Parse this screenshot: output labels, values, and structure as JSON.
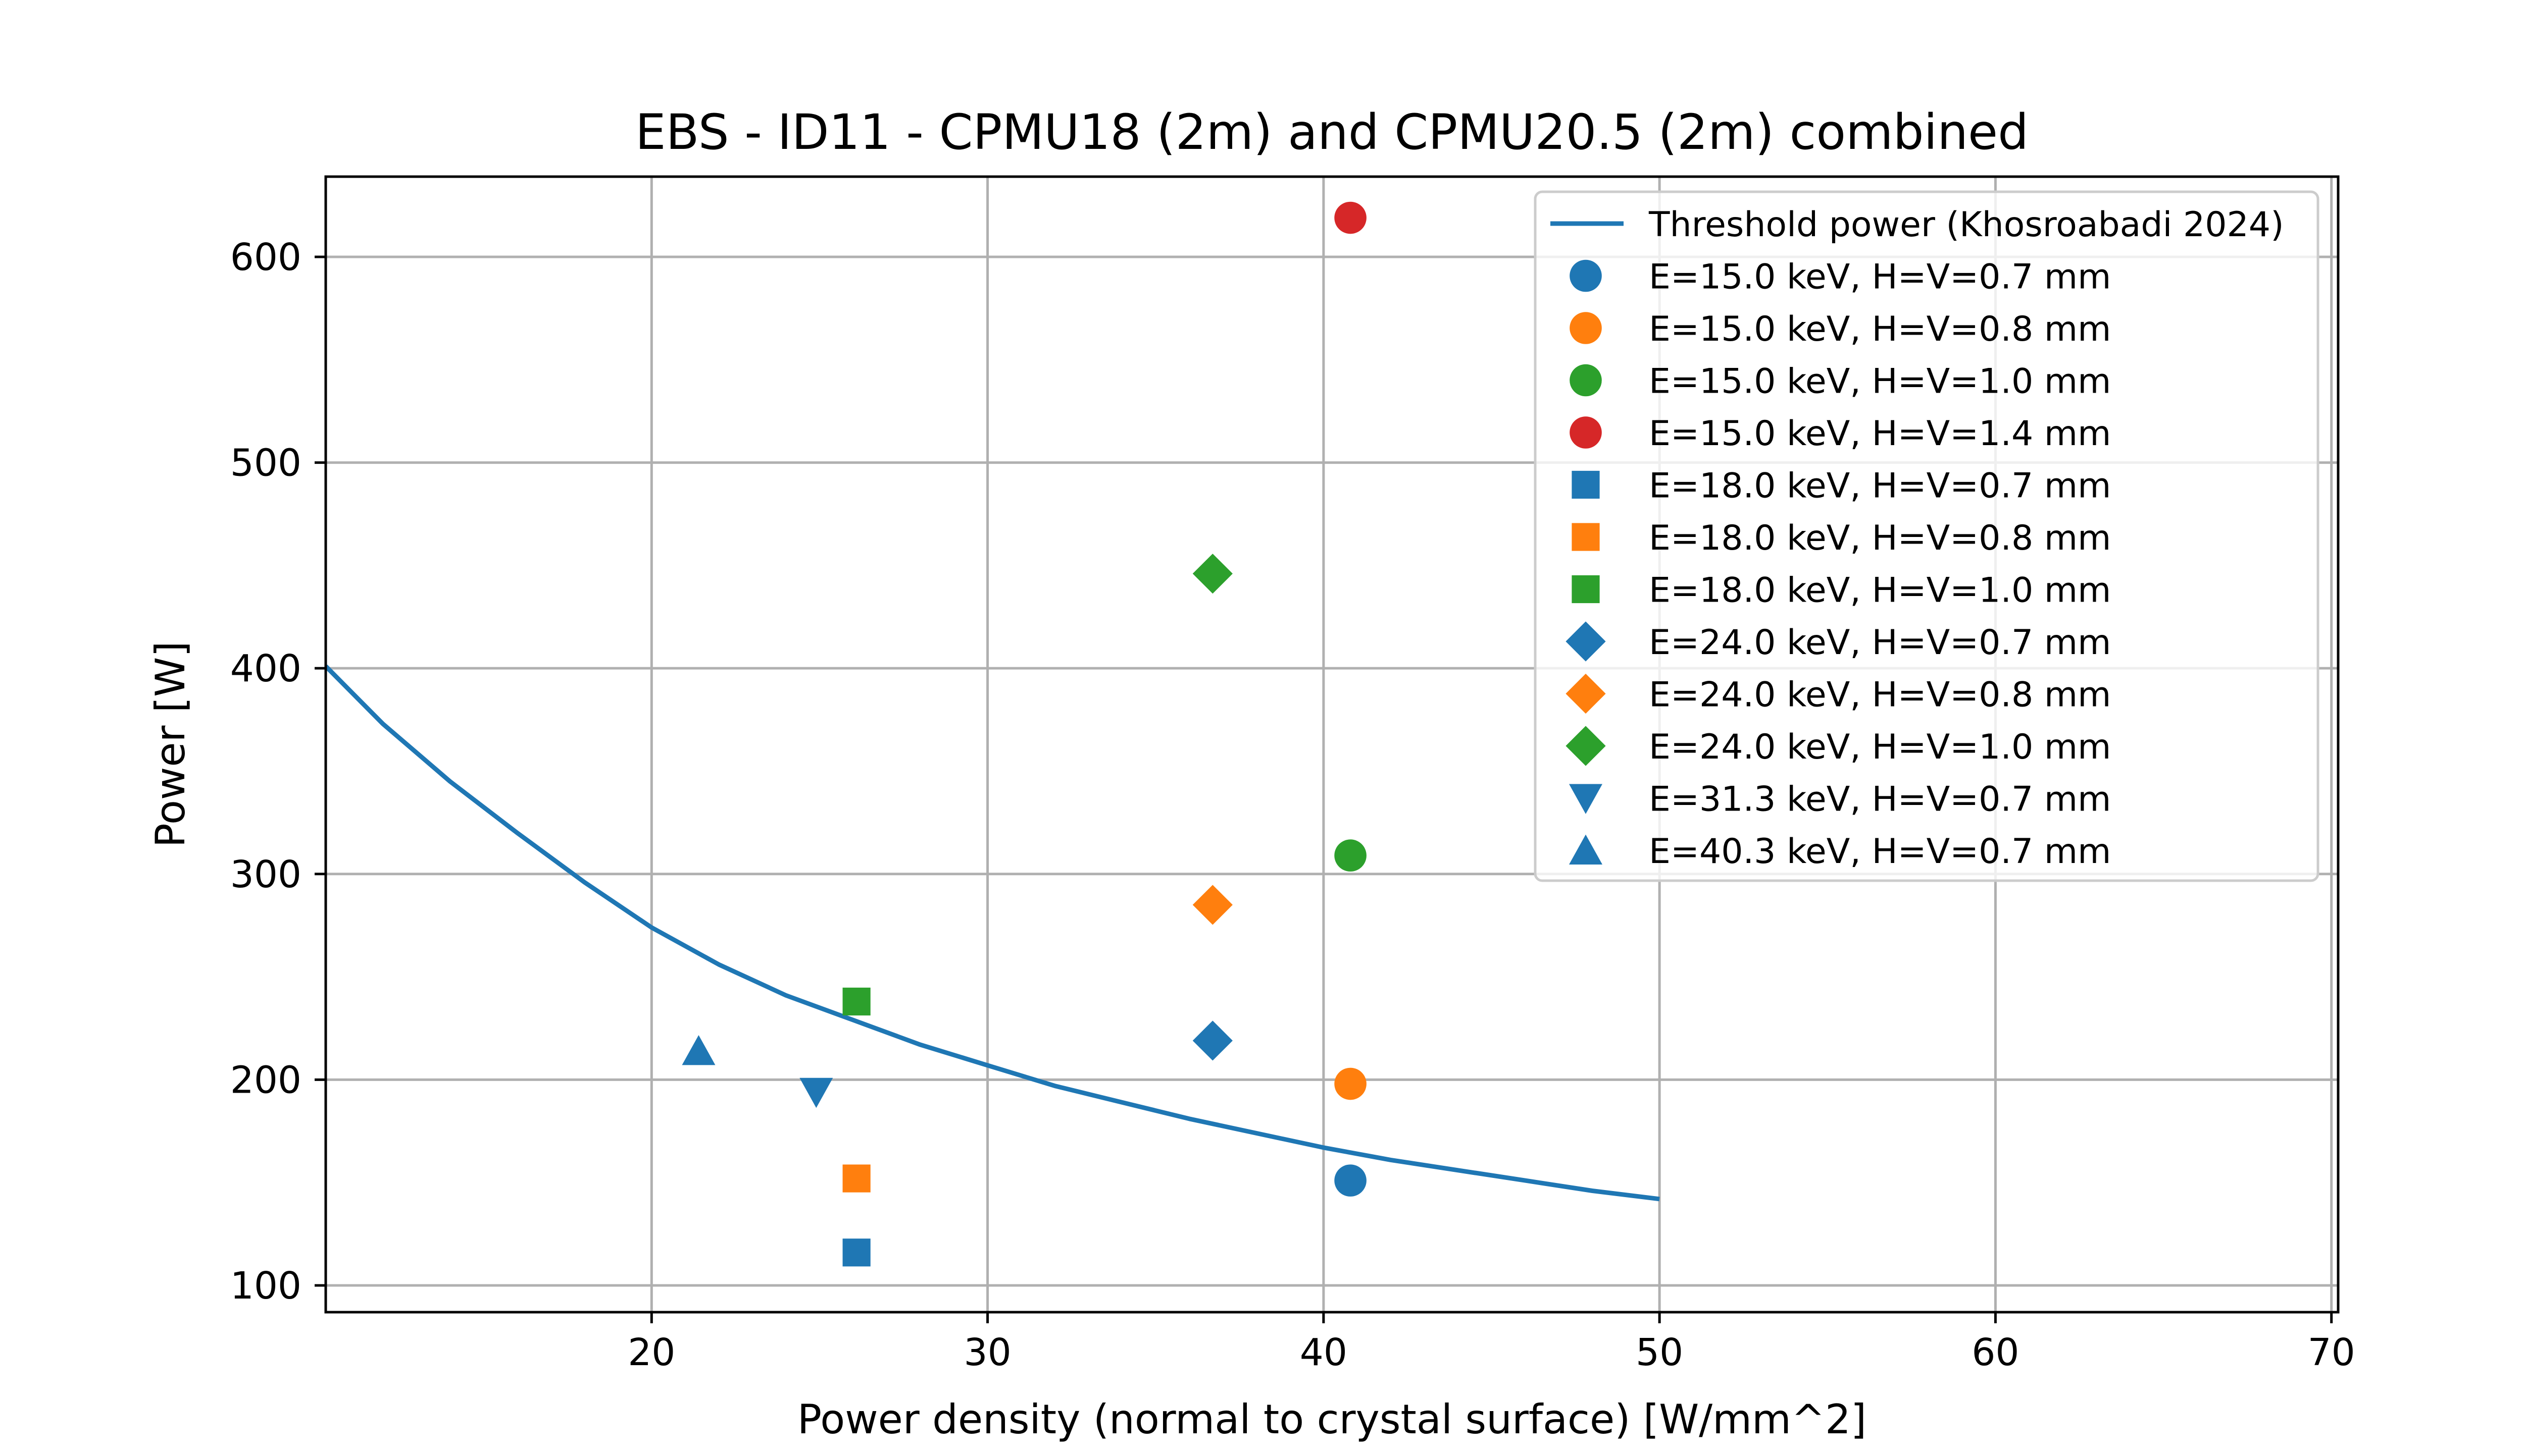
{
  "chart_data": {
    "type": "scatter",
    "title": "EBS - ID11 - CPMU18 (2m) and CPMU20.5 (2m) combined",
    "xlabel": "Power density (normal to crystal surface) [W/mm^2]",
    "ylabel": "Power [W]",
    "xlim": [
      10.3,
      70.2
    ],
    "ylim": [
      87,
      639
    ],
    "xticks": [
      20,
      30,
      40,
      50,
      60,
      70
    ],
    "yticks": [
      100,
      200,
      300,
      400,
      500,
      600
    ],
    "grid": true,
    "legend_position": "top-right",
    "colors": {
      "blue": "#1f77b4",
      "orange": "#ff7f0e",
      "green": "#2ca02c",
      "red": "#d62728"
    },
    "line_series": {
      "name": "Threshold power (Khosroabadi 2024)",
      "color": "#1f77b4",
      "x": [
        10.3,
        12,
        14,
        16,
        18,
        20,
        22,
        24,
        26,
        28,
        30,
        32,
        34,
        36,
        38,
        40,
        42,
        44,
        46,
        48,
        50
      ],
      "y": [
        401,
        373,
        345,
        320,
        296,
        274,
        256,
        241,
        229,
        217,
        207,
        197,
        189,
        181,
        174,
        167,
        161,
        156,
        151,
        146,
        142
      ]
    },
    "series": [
      {
        "name": "E=15.0 keV, H=V=0.7 mm",
        "marker": "circle",
        "color": "#1f77b4",
        "points": [
          [
            40.8,
            151
          ]
        ]
      },
      {
        "name": "E=15.0 keV, H=V=0.8 mm",
        "marker": "circle",
        "color": "#ff7f0e",
        "points": [
          [
            40.8,
            198
          ]
        ]
      },
      {
        "name": "E=15.0 keV, H=V=1.0 mm",
        "marker": "circle",
        "color": "#2ca02c",
        "points": [
          [
            40.8,
            309
          ]
        ]
      },
      {
        "name": "E=15.0 keV, H=V=1.4 mm",
        "marker": "circle",
        "color": "#d62728",
        "points": [
          [
            40.8,
            619
          ]
        ]
      },
      {
        "name": "E=18.0 keV, H=V=0.7 mm",
        "marker": "square",
        "color": "#1f77b4",
        "points": [
          [
            26.1,
            116
          ]
        ]
      },
      {
        "name": "E=18.0 keV, H=V=0.8 mm",
        "marker": "square",
        "color": "#ff7f0e",
        "points": [
          [
            26.1,
            152
          ]
        ]
      },
      {
        "name": "E=18.0 keV, H=V=1.0 mm",
        "marker": "square",
        "color": "#2ca02c",
        "points": [
          [
            26.1,
            238
          ]
        ]
      },
      {
        "name": "E=24.0 keV, H=V=0.7 mm",
        "marker": "diamond",
        "color": "#1f77b4",
        "points": [
          [
            36.7,
            219
          ]
        ]
      },
      {
        "name": "E=24.0 keV, H=V=0.8 mm",
        "marker": "diamond",
        "color": "#ff7f0e",
        "points": [
          [
            36.7,
            285
          ]
        ]
      },
      {
        "name": "E=24.0 keV, H=V=1.0 mm",
        "marker": "diamond",
        "color": "#2ca02c",
        "points": [
          [
            36.7,
            446
          ]
        ]
      },
      {
        "name": "E=31.3 keV, H=V=0.7 mm",
        "marker": "triangle-down",
        "color": "#1f77b4",
        "points": [
          [
            24.9,
            194
          ]
        ]
      },
      {
        "name": "E=40.3 keV, H=V=0.7 mm",
        "marker": "triangle-up",
        "color": "#1f77b4",
        "points": [
          [
            21.4,
            214
          ]
        ]
      }
    ]
  }
}
